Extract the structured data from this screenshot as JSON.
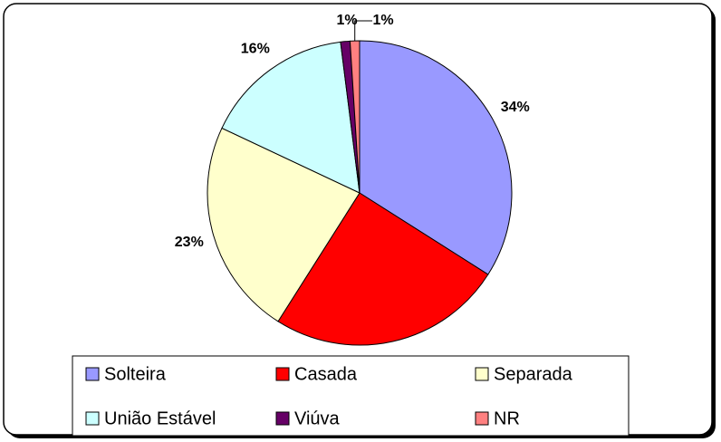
{
  "chart_data": {
    "type": "pie",
    "categories": [
      "Solteira",
      "Casada",
      "Separada",
      "União Estável",
      "Viúva",
      "NR"
    ],
    "values": [
      34,
      25,
      23,
      16,
      1,
      1
    ],
    "value_labels": [
      "34%",
      null,
      "23%",
      "16%",
      "1%",
      "1%"
    ],
    "colors": [
      "#9999ff",
      "#ff0000",
      "#ffffcc",
      "#ccffff",
      "#660066",
      "#ff8080"
    ],
    "legend": "bottom"
  }
}
